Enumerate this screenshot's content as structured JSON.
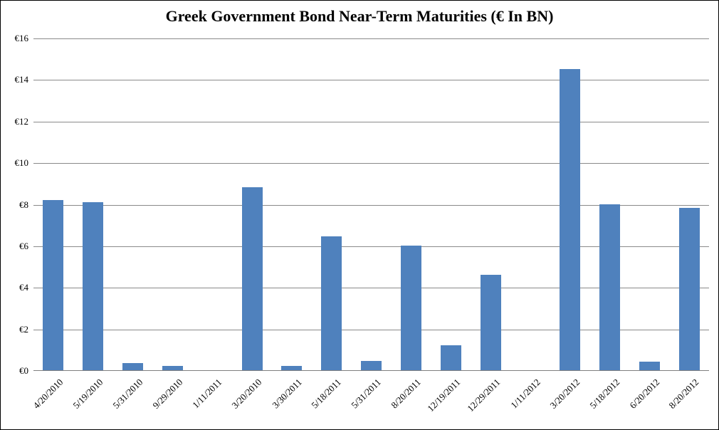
{
  "chart_data": {
    "type": "bar",
    "title": "Greek Government Bond Near-Term Maturities (€ In BN)",
    "categories": [
      "4/20/2010",
      "5/19/2010",
      "5/31/2010",
      "9/29/2010",
      "1/11/2011",
      "3/20/2010",
      "3/30/2011",
      "5/18/2011",
      "5/31/2011",
      "8/20/2011",
      "12/19/2011",
      "12/29/2011",
      "1/11/2012",
      "3/20/2012",
      "5/18/2012",
      "6/20/2012",
      "8/20/2012"
    ],
    "values": [
      8.2,
      8.1,
      0.35,
      0.2,
      0,
      8.8,
      0.2,
      6.45,
      0.45,
      6.0,
      1.2,
      4.6,
      0,
      14.5,
      8.0,
      0.4,
      7.8
    ],
    "xlabel": "",
    "ylabel": "",
    "ylim": [
      0,
      16
    ],
    "y_tick_step": 2,
    "y_tick_labels_top_to_bottom": [
      "€16",
      "€14",
      "€12",
      "€10",
      "€8",
      "€6",
      "€4",
      "€2",
      "€0"
    ],
    "x_tick_rotation_deg": -45,
    "grid": true,
    "legend_position": "none",
    "colors": {
      "bar": "#4F81BD",
      "gridline": "#8A8A8A",
      "axis_line": "#7F7F7F",
      "text": "#000000",
      "background": "#FFFFFF",
      "frame_border": "#000000"
    }
  }
}
